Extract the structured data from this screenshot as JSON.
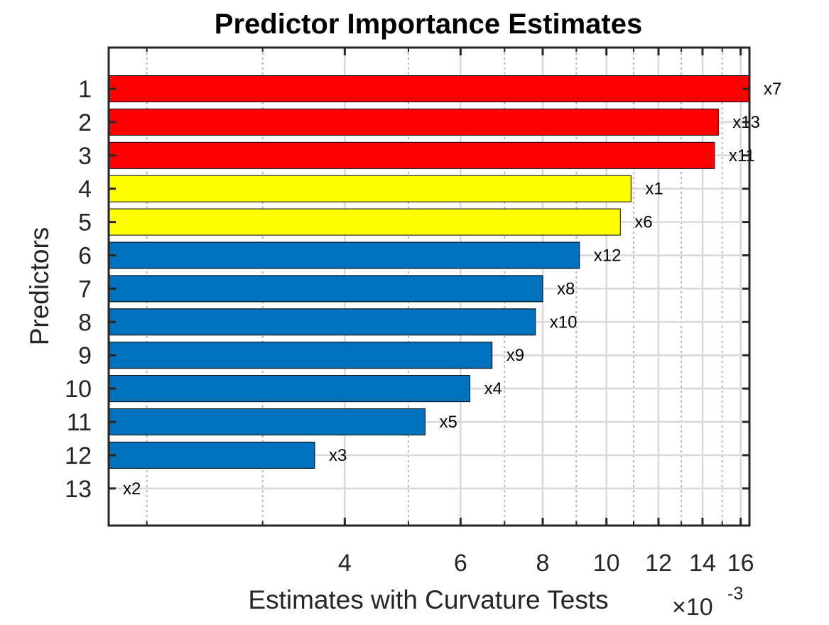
{
  "chart_data": {
    "type": "bar",
    "orientation": "horizontal",
    "title": "Predictor Importance Estimates",
    "xlabel": "Estimates with Curvature Tests",
    "xscale": "log",
    "xlim": [
      0.00175,
      0.0165
    ],
    "xticks": [
      0.004,
      0.006,
      0.008,
      0.01,
      0.012,
      0.014,
      0.016
    ],
    "xtick_labels": [
      "4",
      "6",
      "8",
      "10",
      "12",
      "14",
      "16"
    ],
    "x_exponent_label": "×10",
    "x_exponent_power": "-3",
    "ylabel": "Predictors",
    "grid": true,
    "categories": [
      "1",
      "2",
      "3",
      "4",
      "5",
      "6",
      "7",
      "8",
      "9",
      "10",
      "11",
      "12",
      "13"
    ],
    "bar_labels": [
      "x7",
      "x13",
      "x11",
      "x1",
      "x6",
      "x12",
      "x8",
      "x10",
      "x9",
      "x4",
      "x5",
      "x3",
      "x2"
    ],
    "values": [
      0.0165,
      0.0148,
      0.0146,
      0.0109,
      0.0105,
      0.0091,
      0.008,
      0.0078,
      0.0067,
      0.0062,
      0.0053,
      0.0036,
      0.00175
    ],
    "colors": [
      "#ff0000",
      "#ff0000",
      "#ff0000",
      "#ffff00",
      "#ffff00",
      "#0072bd",
      "#0072bd",
      "#0072bd",
      "#0072bd",
      "#0072bd",
      "#0072bd",
      "#0072bd",
      "#0072bd"
    ]
  }
}
